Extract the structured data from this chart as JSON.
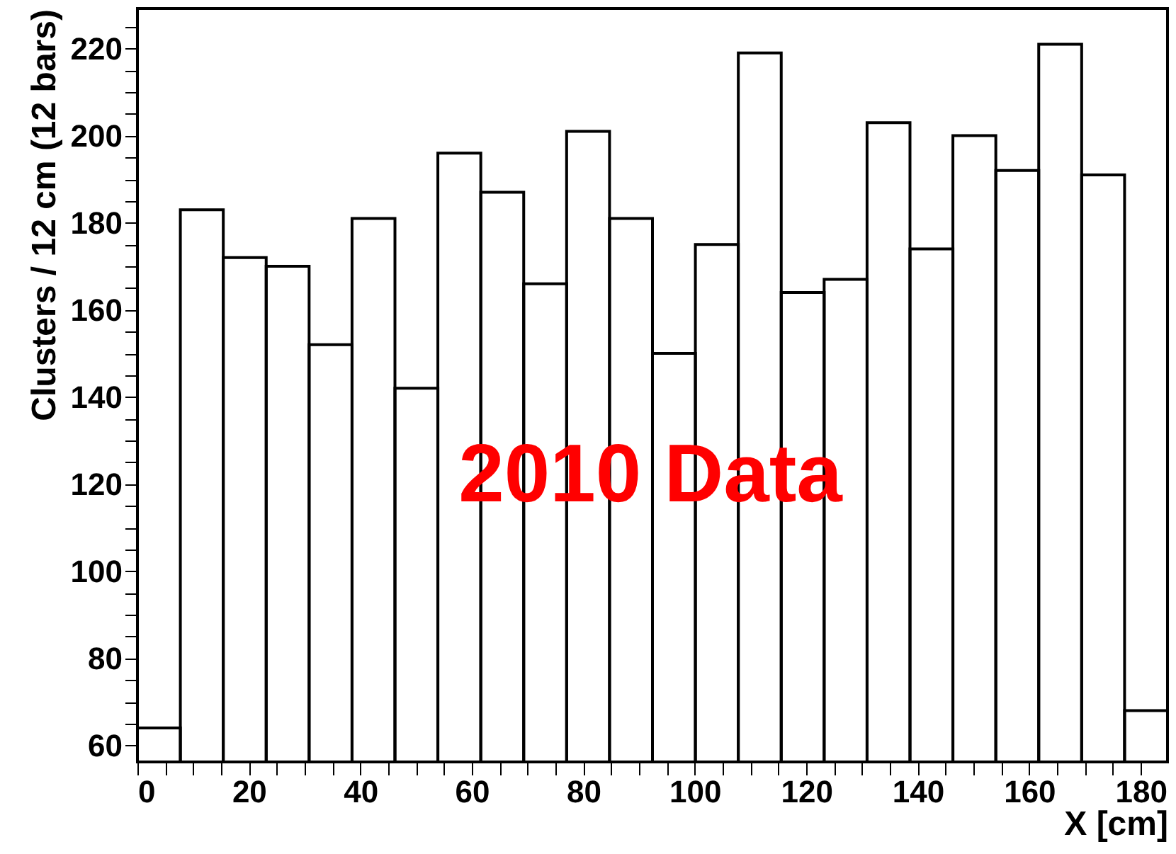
{
  "chart_data": {
    "type": "histogram",
    "xlabel": "X [cm]",
    "ylabel": "Clusters / 12 cm (12 bars)",
    "annotations": [
      "2010 Data"
    ],
    "bins": [
      0,
      7.7,
      15.4,
      23.1,
      30.8,
      38.5,
      46.2,
      53.9,
      61.6,
      69.3,
      77,
      84.7,
      92.4,
      100.1,
      107.8,
      115.5,
      123.2,
      130.9,
      138.6,
      146.3,
      154,
      161.7,
      169.4,
      177.1,
      184.8
    ],
    "values": [
      64,
      183,
      172,
      170,
      152,
      181,
      142,
      196,
      187,
      166,
      201,
      181,
      150,
      175,
      219,
      164,
      167,
      203,
      174,
      200,
      192,
      221,
      191,
      68
    ],
    "color": "#000000",
    "xlim": [
      0,
      184.8
    ],
    "ylim": [
      56.2,
      229.2
    ],
    "xticks": [
      0,
      {
        "value": 5,
        "label": null
      },
      {
        "value": 10,
        "label": null
      },
      {
        "value": 15,
        "label": null
      },
      20,
      {
        "value": 25,
        "label": null
      },
      {
        "value": 30,
        "label": null
      },
      {
        "value": 35,
        "label": null
      },
      40,
      {
        "value": 45,
        "label": null
      },
      {
        "value": 50,
        "label": null
      },
      {
        "value": 55,
        "label": null
      },
      60,
      {
        "value": 65,
        "label": null
      },
      {
        "value": 70,
        "label": null
      },
      {
        "value": 75,
        "label": null
      },
      80,
      {
        "value": 85,
        "label": null
      },
      {
        "value": 90,
        "label": null
      },
      {
        "value": 95,
        "label": null
      },
      100,
      {
        "value": 105,
        "label": null
      },
      {
        "value": 110,
        "label": null
      },
      {
        "value": 115,
        "label": null
      },
      120,
      {
        "value": 125,
        "label": null
      },
      {
        "value": 130,
        "label": null
      },
      {
        "value": 135,
        "label": null
      },
      140,
      {
        "value": 145,
        "label": null
      },
      {
        "value": 150,
        "label": null
      },
      {
        "value": 155,
        "label": null
      },
      160,
      {
        "value": 165,
        "label": null
      },
      {
        "value": 170,
        "label": null
      },
      {
        "value": 175,
        "label": null
      },
      180
    ],
    "yticks": [
      60,
      {
        "value": 65,
        "label": null
      },
      {
        "value": 70,
        "label": null
      },
      {
        "value": 75,
        "label": null
      },
      80,
      {
        "value": 85,
        "label": null
      },
      {
        "value": 90,
        "label": null
      },
      {
        "value": 95,
        "label": null
      },
      100,
      {
        "value": 105,
        "label": null
      },
      {
        "value": 110,
        "label": null
      },
      {
        "value": 115,
        "label": null
      },
      120,
      {
        "value": 125,
        "label": null
      },
      {
        "value": 130,
        "label": null
      },
      {
        "value": 135,
        "label": null
      },
      140,
      {
        "value": 145,
        "label": null
      },
      {
        "value": 150,
        "label": null
      },
      {
        "value": 155,
        "label": null
      },
      160,
      {
        "value": 165,
        "label": null
      },
      {
        "value": 170,
        "label": null
      },
      {
        "value": 175,
        "label": null
      },
      180,
      {
        "value": 185,
        "label": null
      },
      {
        "value": 190,
        "label": null
      },
      {
        "value": 195,
        "label": null
      },
      200,
      {
        "value": 205,
        "label": null
      },
      {
        "value": 210,
        "label": null
      },
      {
        "value": 215,
        "label": null
      },
      220,
      {
        "value": 225,
        "label": null
      }
    ],
    "grid": false
  }
}
